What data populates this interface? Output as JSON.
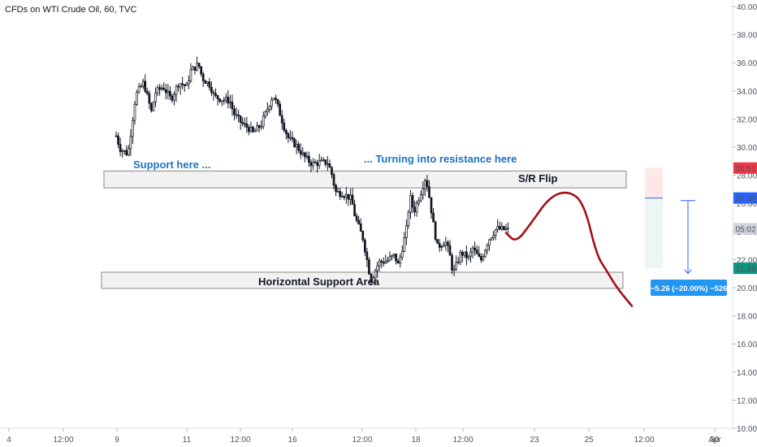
{
  "header": {
    "title": "CFDs on WTI Crude Oil, 60, TVC"
  },
  "chart_data": {
    "type": "candlestick",
    "title": "CFDs on WTI Crude Oil, 60, TVC",
    "y_axis": {
      "ticks": [
        "10.00",
        "12.00",
        "14.00",
        "16.00",
        "18.00",
        "20.00",
        "22.00",
        "24.00",
        "26.00",
        "28.00",
        "30.00",
        "32.00",
        "34.00",
        "36.00",
        "38.00",
        "40.00"
      ],
      "ylim": [
        10,
        40
      ]
    },
    "x_axis": {
      "ticks": [
        "4",
        "12:00",
        "9",
        "11",
        "12:00",
        "16",
        "12:00",
        "18",
        "12:00",
        "23",
        "25",
        "12:00",
        "30",
        "Apr"
      ]
    },
    "price_markers": [
      {
        "label": "28.51",
        "value": 28.51,
        "color": "#f23645"
      },
      {
        "label": "26.38",
        "value": 26.38,
        "color": "#2962ff"
      },
      {
        "label": "05:02",
        "value": 24.2,
        "color": "#d1d4dc"
      },
      {
        "label": "21.38",
        "value": 21.38,
        "color": "#089981"
      }
    ],
    "annotations": {
      "support_here": "Support here ...",
      "turning_resistance": "... Turning into resistance here",
      "sr_flip": "S/R Flip",
      "horizontal_support": "Horizontal Support Area",
      "measure": "−5.26 (−20.00%) −526"
    },
    "zones": [
      {
        "name": "sr-flip-zone",
        "y_top": 28.3,
        "y_bottom": 27.1
      },
      {
        "name": "horizontal-support-zone",
        "y_top": 21.1,
        "y_bottom": 19.95
      }
    ],
    "price_path": [
      [
        0,
        30.8
      ],
      [
        0.01,
        29.9
      ],
      [
        0.03,
        29.5
      ],
      [
        0.05,
        33.7
      ],
      [
        0.07,
        34.6
      ],
      [
        0.09,
        32.5
      ],
      [
        0.1,
        33.9
      ],
      [
        0.12,
        34.3
      ],
      [
        0.14,
        33.4
      ],
      [
        0.16,
        34.6
      ],
      [
        0.18,
        34.3
      ],
      [
        0.19,
        35.4
      ],
      [
        0.21,
        35.9
      ],
      [
        0.22,
        34.9
      ],
      [
        0.24,
        34.4
      ],
      [
        0.25,
        33.6
      ],
      [
        0.27,
        33.4
      ],
      [
        0.29,
        33.3
      ],
      [
        0.3,
        32.4
      ],
      [
        0.32,
        31.7
      ],
      [
        0.34,
        31.3
      ],
      [
        0.35,
        31.0
      ],
      [
        0.37,
        31.6
      ],
      [
        0.39,
        33.0
      ],
      [
        0.4,
        33.7
      ],
      [
        0.41,
        33.1
      ],
      [
        0.43,
        31.3
      ],
      [
        0.44,
        30.6
      ],
      [
        0.46,
        30.1
      ],
      [
        0.48,
        29.3
      ],
      [
        0.5,
        28.8
      ],
      [
        0.52,
        28.9
      ],
      [
        0.54,
        28.9
      ],
      [
        0.55,
        28.1
      ],
      [
        0.56,
        26.8
      ],
      [
        0.58,
        26.7
      ],
      [
        0.6,
        26.3
      ],
      [
        0.61,
        25.0
      ],
      [
        0.63,
        23.5
      ],
      [
        0.64,
        22.0
      ],
      [
        0.65,
        20.5
      ],
      [
        0.67,
        21.8
      ],
      [
        0.69,
        21.9
      ],
      [
        0.71,
        22.3
      ],
      [
        0.72,
        21.6
      ],
      [
        0.74,
        24.0
      ],
      [
        0.75,
        26.5
      ],
      [
        0.76,
        25.4
      ],
      [
        0.78,
        27.0
      ],
      [
        0.79,
        27.9
      ],
      [
        0.8,
        26.3
      ],
      [
        0.81,
        24.4
      ],
      [
        0.82,
        22.9
      ],
      [
        0.84,
        23.3
      ],
      [
        0.85,
        22.5
      ],
      [
        0.86,
        21.0
      ],
      [
        0.88,
        22.5
      ],
      [
        0.9,
        22.1
      ],
      [
        0.91,
        22.8
      ],
      [
        0.93,
        21.9
      ],
      [
        0.95,
        23.4
      ],
      [
        0.97,
        24.2
      ],
      [
        1.0,
        24.1
      ]
    ],
    "projection": [
      [
        0,
        23.9
      ],
      [
        0.08,
        23.2
      ],
      [
        0.2,
        24.6
      ],
      [
        0.35,
        26.5
      ],
      [
        0.5,
        26.9
      ],
      [
        0.62,
        26.0
      ],
      [
        0.72,
        22.3
      ],
      [
        0.8,
        21.2
      ],
      [
        0.88,
        20.0
      ],
      [
        1.0,
        18.7
      ]
    ]
  }
}
